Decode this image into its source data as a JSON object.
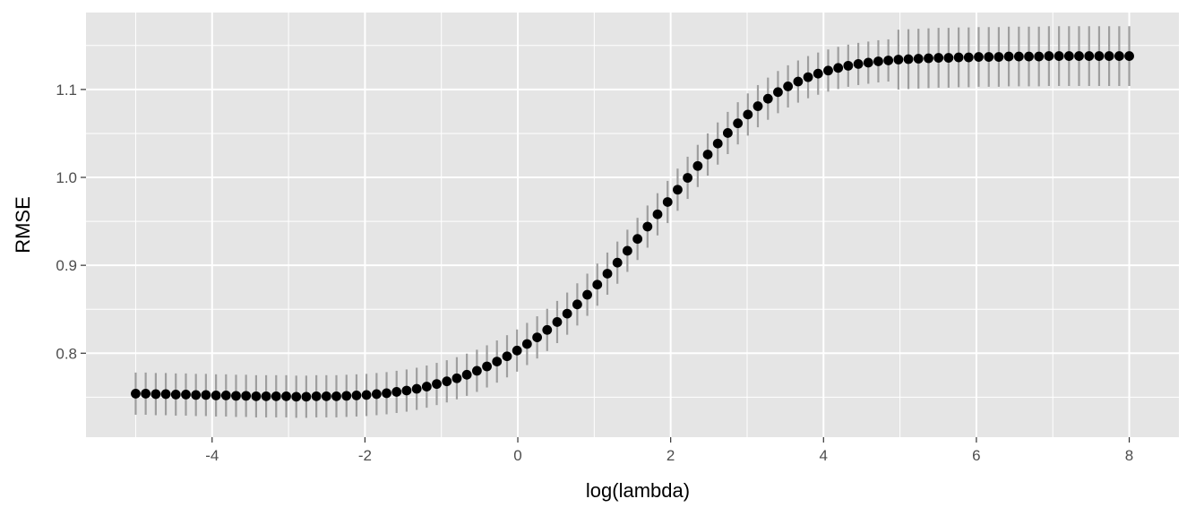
{
  "chart_data": {
    "type": "scatter",
    "title": "",
    "xlabel": "log(lambda)",
    "ylabel": "RMSE",
    "xlim": [
      -5.65,
      8.65
    ],
    "ylim": [
      0.7045,
      1.1875
    ],
    "x_ticks": [
      "-4",
      "-2",
      "0",
      "2",
      "4",
      "6",
      "8"
    ],
    "y_ticks": [
      "0.8",
      "0.9",
      "1.0",
      "1.1"
    ],
    "grid": true,
    "legend": "none",
    "colors": {
      "panel_background": "#e5e5e5",
      "grid_line": "#ffffff",
      "point": "#000000",
      "error_bar": "#9e9e9e",
      "tick_text": "#4d4d4d",
      "axis_title": "#000000"
    },
    "series": [
      {
        "x": [
          -5.0,
          -4.869,
          -4.737,
          -4.606,
          -4.475,
          -4.343,
          -4.212,
          -4.081,
          -3.949,
          -3.818,
          -3.687,
          -3.556,
          -3.424,
          -3.293,
          -3.162,
          -3.03,
          -2.899,
          -2.768,
          -2.636,
          -2.505,
          -2.374,
          -2.242,
          -2.111,
          -1.98,
          -1.848,
          -1.717,
          -1.586,
          -1.455,
          -1.323,
          -1.192,
          -1.061,
          -0.929,
          -0.798,
          -0.667,
          -0.535,
          -0.404,
          -0.273,
          -0.141,
          -0.01,
          0.121,
          0.253,
          0.384,
          0.515,
          0.646,
          0.778,
          0.909,
          1.04,
          1.172,
          1.303,
          1.434,
          1.566,
          1.697,
          1.828,
          1.96,
          2.091,
          2.222,
          2.354,
          2.485,
          2.616,
          2.747,
          2.879,
          3.01,
          3.141,
          3.273,
          3.404,
          3.535,
          3.667,
          3.798,
          3.929,
          4.061,
          4.192,
          4.323,
          4.455,
          4.586,
          4.717,
          4.848,
          4.98,
          5.111,
          5.242,
          5.374,
          5.505,
          5.636,
          5.768,
          5.899,
          6.03,
          6.162,
          6.293,
          6.424,
          6.556,
          6.687,
          6.818,
          6.949,
          7.081,
          7.212,
          7.343,
          7.475,
          7.606,
          7.737,
          7.869,
          8.0
        ],
        "y": [
          0.754,
          0.754,
          0.7535,
          0.7535,
          0.753,
          0.753,
          0.7525,
          0.7525,
          0.752,
          0.752,
          0.7515,
          0.7515,
          0.751,
          0.751,
          0.751,
          0.751,
          0.7505,
          0.7505,
          0.751,
          0.751,
          0.751,
          0.7515,
          0.752,
          0.7525,
          0.7535,
          0.7545,
          0.756,
          0.7575,
          0.7595,
          0.762,
          0.765,
          0.768,
          0.7715,
          0.7755,
          0.78,
          0.785,
          0.7905,
          0.7965,
          0.803,
          0.8105,
          0.818,
          0.8265,
          0.8355,
          0.845,
          0.8555,
          0.8665,
          0.878,
          0.8905,
          0.903,
          0.9165,
          0.93,
          0.944,
          0.958,
          0.972,
          0.986,
          0.9995,
          1.013,
          1.026,
          1.0385,
          1.0505,
          1.0615,
          1.0715,
          1.081,
          1.0895,
          1.097,
          1.1035,
          1.109,
          1.114,
          1.118,
          1.1215,
          1.1245,
          1.127,
          1.129,
          1.1305,
          1.132,
          1.133,
          1.134,
          1.1345,
          1.135,
          1.1355,
          1.136,
          1.136,
          1.1365,
          1.1365,
          1.137,
          1.137,
          1.137,
          1.1375,
          1.1375,
          1.1375,
          1.1375,
          1.138,
          1.138,
          1.138,
          1.138,
          1.138,
          1.138,
          1.138,
          1.138,
          1.138
        ],
        "error_low": [
          0.73,
          0.73,
          0.7295,
          0.7295,
          0.729,
          0.729,
          0.7285,
          0.7285,
          0.728,
          0.728,
          0.7275,
          0.7275,
          0.727,
          0.727,
          0.727,
          0.727,
          0.7265,
          0.7265,
          0.727,
          0.727,
          0.727,
          0.7275,
          0.728,
          0.7285,
          0.7295,
          0.7305,
          0.732,
          0.7335,
          0.7355,
          0.738,
          0.741,
          0.744,
          0.7475,
          0.7515,
          0.756,
          0.761,
          0.7665,
          0.7725,
          0.779,
          0.7865,
          0.794,
          0.8025,
          0.8115,
          0.821,
          0.8315,
          0.8425,
          0.854,
          0.8665,
          0.879,
          0.8925,
          0.906,
          0.92,
          0.934,
          0.948,
          0.962,
          0.9755,
          0.989,
          1.002,
          1.0145,
          1.0265,
          1.0375,
          1.0475,
          1.057,
          1.0655,
          1.073,
          1.0795,
          1.085,
          1.09,
          1.094,
          1.0975,
          1.1005,
          1.103,
          1.105,
          1.1065,
          1.108,
          1.109,
          1.1,
          1.1005,
          1.101,
          1.1015,
          1.102,
          1.102,
          1.1025,
          1.1025,
          1.103,
          1.103,
          1.103,
          1.1035,
          1.1035,
          1.1035,
          1.1035,
          1.104,
          1.104,
          1.104,
          1.104,
          1.104,
          1.104,
          1.104,
          1.104,
          1.104
        ],
        "error_high": [
          0.778,
          0.778,
          0.7775,
          0.7775,
          0.777,
          0.777,
          0.7765,
          0.7765,
          0.776,
          0.776,
          0.7755,
          0.7755,
          0.775,
          0.775,
          0.775,
          0.775,
          0.7745,
          0.7745,
          0.775,
          0.775,
          0.775,
          0.7755,
          0.776,
          0.7765,
          0.7775,
          0.7785,
          0.78,
          0.7815,
          0.7835,
          0.786,
          0.789,
          0.792,
          0.7955,
          0.7995,
          0.804,
          0.809,
          0.8145,
          0.8205,
          0.827,
          0.8345,
          0.842,
          0.8505,
          0.8595,
          0.869,
          0.8795,
          0.8905,
          0.902,
          0.9145,
          0.927,
          0.9405,
          0.954,
          0.968,
          0.982,
          0.996,
          1.01,
          1.0235,
          1.037,
          1.05,
          1.0625,
          1.0745,
          1.0855,
          1.0955,
          1.105,
          1.1135,
          1.121,
          1.1275,
          1.133,
          1.138,
          1.142,
          1.1455,
          1.1485,
          1.151,
          1.153,
          1.1545,
          1.156,
          1.157,
          1.168,
          1.1685,
          1.169,
          1.1695,
          1.17,
          1.17,
          1.1705,
          1.1705,
          1.171,
          1.171,
          1.171,
          1.1715,
          1.1715,
          1.1715,
          1.1715,
          1.172,
          1.172,
          1.172,
          1.172,
          1.172,
          1.172,
          1.172,
          1.172,
          1.172
        ]
      }
    ]
  }
}
